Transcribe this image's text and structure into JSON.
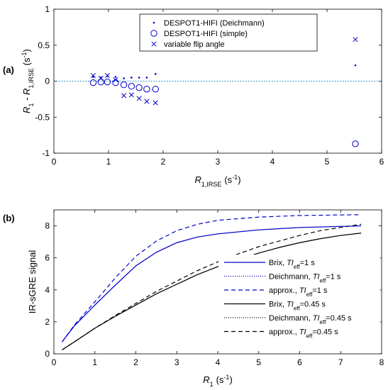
{
  "chart_data": [
    {
      "type": "scatter",
      "panel_label": "(a)",
      "xlabel": {
        "main": "R",
        "sub": "1,IRSE",
        "unit": "(s",
        "unit_sup": "-1",
        "unit_end": ")"
      },
      "ylabel": {
        "main": "R",
        "sub1": "1",
        "mid": " - R",
        "sub2": "1,IRSE",
        "unit": " (s",
        "unit_sup": "-1",
        "unit_end": ")"
      },
      "xlim": [
        0,
        6
      ],
      "ylim": [
        -1,
        1
      ],
      "x_ticks": [
        0,
        1,
        2,
        3,
        4,
        5,
        6
      ],
      "y_ticks": [
        -1,
        -0.5,
        0,
        0.5,
        1
      ],
      "reference_line_y": 0,
      "legend_position": "top-center",
      "color": "#0000CC",
      "series": [
        {
          "name": "DESPOT1-HIFI (Deichmann)",
          "marker": "dot",
          "points": [
            [
              0.72,
              0.06
            ],
            [
              0.86,
              0.05
            ],
            [
              0.98,
              0.07
            ],
            [
              1.13,
              0.06
            ],
            [
              1.28,
              0.04
            ],
            [
              1.42,
              0.05
            ],
            [
              1.56,
              0.05
            ],
            [
              1.7,
              0.05
            ],
            [
              1.86,
              0.1
            ],
            [
              5.52,
              0.22
            ]
          ]
        },
        {
          "name": "DESPOT1-HIFI (simple)",
          "marker": "circle",
          "points": [
            [
              0.72,
              -0.02
            ],
            [
              0.86,
              -0.01
            ],
            [
              0.98,
              -0.01
            ],
            [
              1.13,
              -0.02
            ],
            [
              1.28,
              -0.05
            ],
            [
              1.42,
              -0.07
            ],
            [
              1.56,
              -0.09
            ],
            [
              1.7,
              -0.11
            ],
            [
              1.86,
              -0.11
            ],
            [
              5.52,
              -0.87
            ]
          ]
        },
        {
          "name": "variable flip angle",
          "marker": "x",
          "points": [
            [
              0.72,
              0.08
            ],
            [
              0.86,
              0.04
            ],
            [
              0.98,
              0.08
            ],
            [
              1.13,
              0.02
            ],
            [
              1.28,
              -0.2
            ],
            [
              1.42,
              -0.19
            ],
            [
              1.56,
              -0.24
            ],
            [
              1.7,
              -0.28
            ],
            [
              1.86,
              -0.3
            ],
            [
              5.52,
              0.58
            ]
          ]
        }
      ]
    },
    {
      "type": "line",
      "panel_label": "(b)",
      "xlabel": {
        "main": "R",
        "sub": "1",
        "unit": "(s",
        "unit_sup": "-1",
        "unit_end": ")"
      },
      "ylabel": "IR-sGRE signal",
      "xlim": [
        0,
        8
      ],
      "ylim": [
        0,
        9
      ],
      "x_ticks": [
        0,
        1,
        2,
        3,
        4,
        5,
        6,
        7,
        8
      ],
      "y_ticks": [
        0,
        2,
        4,
        6,
        8
      ],
      "legend_position": "bottom-right",
      "series": [
        {
          "name_pre": "Brix, ",
          "name_ti": "TI",
          "name_sub": "eff",
          "name_post": "=1 s",
          "color": "#0000CC",
          "dash": "solid",
          "points": [
            [
              0.2,
              0.75
            ],
            [
              0.5,
              1.75
            ],
            [
              1.0,
              3.05
            ],
            [
              1.5,
              4.3
            ],
            [
              2.0,
              5.5
            ],
            [
              2.5,
              6.35
            ],
            [
              3.0,
              6.95
            ],
            [
              3.5,
              7.3
            ],
            [
              4.0,
              7.5
            ],
            [
              5.0,
              7.75
            ],
            [
              6.0,
              7.9
            ],
            [
              7.5,
              8.0
            ]
          ]
        },
        {
          "name_pre": "Deichmann, ",
          "name_ti": "TI",
          "name_sub": "eff",
          "name_post": "=1 s",
          "color": "#0000CC",
          "dash": "dotted",
          "points": [
            [
              0.2,
              0.75
            ],
            [
              0.5,
              1.75
            ],
            [
              1.0,
              3.05
            ],
            [
              1.5,
              4.3
            ],
            [
              2.0,
              5.5
            ],
            [
              2.5,
              6.35
            ],
            [
              3.0,
              6.95
            ],
            [
              3.5,
              7.3
            ],
            [
              4.0,
              7.5
            ],
            [
              5.0,
              7.75
            ],
            [
              6.0,
              7.9
            ],
            [
              7.5,
              8.0
            ]
          ]
        },
        {
          "name_pre": "approx., ",
          "name_ti": "TI",
          "name_sub": "eff",
          "name_post": "=1 s",
          "color": "#0000CC",
          "dash": "dashed",
          "points": [
            [
              0.2,
              0.75
            ],
            [
              0.5,
              1.8
            ],
            [
              1.0,
              3.25
            ],
            [
              1.5,
              4.75
            ],
            [
              2.0,
              6.1
            ],
            [
              2.5,
              7.05
            ],
            [
              3.0,
              7.7
            ],
            [
              3.5,
              8.1
            ],
            [
              4.0,
              8.35
            ],
            [
              5.0,
              8.55
            ],
            [
              6.0,
              8.65
            ],
            [
              7.5,
              8.7
            ]
          ]
        },
        {
          "name_pre": "Brix, ",
          "name_ti": "TI",
          "name_sub": "eff",
          "name_post": "=0.45 s",
          "color": "#000000",
          "dash": "solid",
          "points": [
            [
              0.2,
              0.25
            ],
            [
              0.5,
              0.75
            ],
            [
              1.0,
              1.6
            ],
            [
              1.5,
              2.35
            ],
            [
              2.0,
              3.05
            ],
            [
              2.5,
              3.75
            ],
            [
              3.0,
              4.35
            ],
            [
              3.5,
              4.95
            ],
            [
              4.0,
              5.45
            ],
            [
              4.5,
              5.9
            ],
            [
              5.0,
              6.3
            ],
            [
              5.5,
              6.65
            ],
            [
              6.0,
              6.95
            ],
            [
              6.5,
              7.2
            ],
            [
              7.0,
              7.4
            ],
            [
              7.5,
              7.55
            ]
          ]
        },
        {
          "name_pre": "Deichmann, ",
          "name_ti": "TI",
          "name_sub": "eff",
          "name_post": "=0.45 s",
          "color": "#000000",
          "dash": "dotted",
          "points": [
            [
              0.2,
              0.25
            ],
            [
              0.5,
              0.75
            ],
            [
              1.0,
              1.6
            ],
            [
              1.5,
              2.35
            ],
            [
              2.0,
              3.05
            ],
            [
              2.5,
              3.75
            ],
            [
              3.0,
              4.35
            ],
            [
              3.5,
              4.95
            ],
            [
              4.0,
              5.45
            ],
            [
              4.5,
              5.9
            ],
            [
              5.0,
              6.3
            ],
            [
              5.5,
              6.65
            ],
            [
              6.0,
              6.95
            ],
            [
              6.5,
              7.2
            ],
            [
              7.0,
              7.4
            ],
            [
              7.5,
              7.55
            ]
          ]
        },
        {
          "name_pre": "approx., ",
          "name_ti": "TI",
          "name_sub": "eff",
          "name_post": "=0.45 s",
          "color": "#000000",
          "dash": "dashed",
          "points": [
            [
              0.2,
              0.25
            ],
            [
              0.5,
              0.75
            ],
            [
              1.0,
              1.6
            ],
            [
              1.5,
              2.4
            ],
            [
              2.0,
              3.15
            ],
            [
              2.5,
              3.9
            ],
            [
              3.0,
              4.55
            ],
            [
              3.5,
              5.2
            ],
            [
              4.0,
              5.75
            ],
            [
              4.5,
              6.25
            ],
            [
              5.0,
              6.7
            ],
            [
              5.5,
              7.05
            ],
            [
              6.0,
              7.4
            ],
            [
              6.5,
              7.7
            ],
            [
              7.0,
              7.9
            ],
            [
              7.5,
              8.1
            ]
          ]
        }
      ]
    }
  ]
}
